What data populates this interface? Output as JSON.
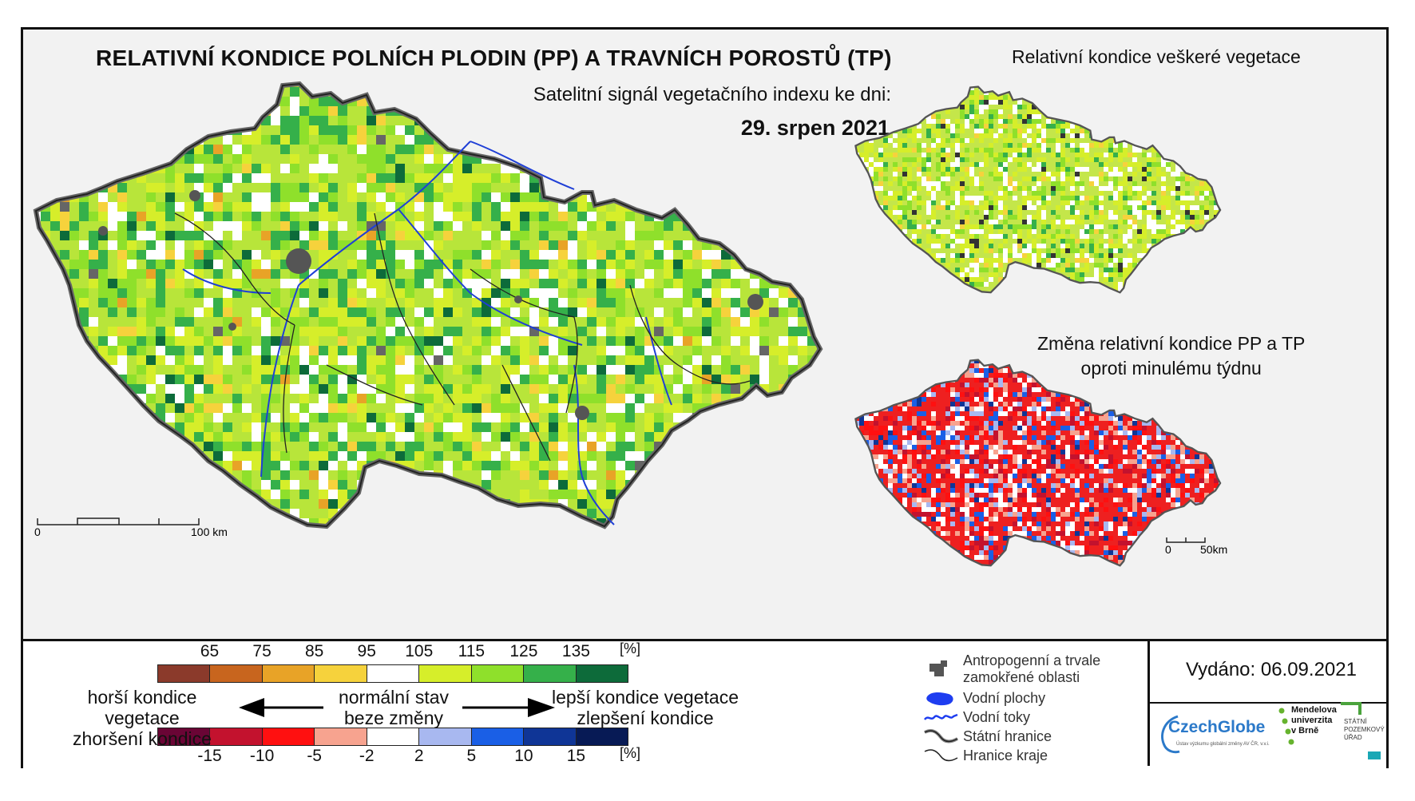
{
  "main_map": {
    "title": "RELATIVNÍ KONDICE POLNÍCH PLODIN (PP) A TRAVNÍCH POROSTŮ (TP)",
    "subtitle": "Satelitní signál vegetačního indexu ke dni:",
    "date": "29. srpen 2021",
    "scale": {
      "start": "0",
      "end": "100 km"
    }
  },
  "inset_all": {
    "title": "Relativní kondice veškeré vegetace"
  },
  "inset_change": {
    "title_line1": "Změna relativní kondice PP a TP",
    "title_line2": "oproti minulému týdnu",
    "scale": {
      "start": "0",
      "end": "50km"
    }
  },
  "legend_condition": {
    "ticks": [
      "65",
      "75",
      "85",
      "95",
      "105",
      "115",
      "125",
      "135"
    ],
    "unit": "[%]",
    "colors": [
      "#8b3a2b",
      "#c8651e",
      "#e8a327",
      "#f6d23c",
      "#ffffff",
      "#d6ee2a",
      "#8fe02b",
      "#35b04a",
      "#0d6b3a"
    ]
  },
  "legend_change": {
    "ticks": [
      "-15",
      "-10",
      "-5",
      "-2",
      "2",
      "5",
      "10",
      "15"
    ],
    "unit": "[%]",
    "colors": [
      "#6a0535",
      "#c3122e",
      "#ff1010",
      "#f7a38f",
      "#ffffff",
      "#a8b8f0",
      "#1a5fe6",
      "#0f3596",
      "#071a55"
    ]
  },
  "legend_text": {
    "worse_line1": "horší kondice vegetace",
    "worse_line2": "zhoršení kondice",
    "normal_line1": "normální stav",
    "normal_line2": "beze změny",
    "better_line1": "lepší kondice vegetace",
    "better_line2": "zlepšení kondice"
  },
  "symbols": [
    {
      "icon": "urban-area-icon",
      "label_line1": "Antropogenní a trvale",
      "label_line2": "zamokřené oblasti"
    },
    {
      "icon": "water-body-icon",
      "label_line1": "Vodní plochy"
    },
    {
      "icon": "river-icon",
      "label_line1": "Vodní toky"
    },
    {
      "icon": "state-border-icon",
      "label_line1": "Státní hranice"
    },
    {
      "icon": "region-border-icon",
      "label_line1": "Hranice kraje"
    }
  ],
  "issued": "Vydáno: 06.09.2021",
  "logos": {
    "czechglobe": "CzechGlobe",
    "czechglobe_sub": "Ústav výzkumu globální změny AV ČR, v.v.i.",
    "mendelu_line1": "Mendelova",
    "mendelu_line2": "univerzita",
    "mendelu_line3": "v Brně",
    "spu_line1": "STÁTNÍ",
    "spu_line2": "POZEMKOVÝ",
    "spu_line3": "ÚŘAD"
  }
}
